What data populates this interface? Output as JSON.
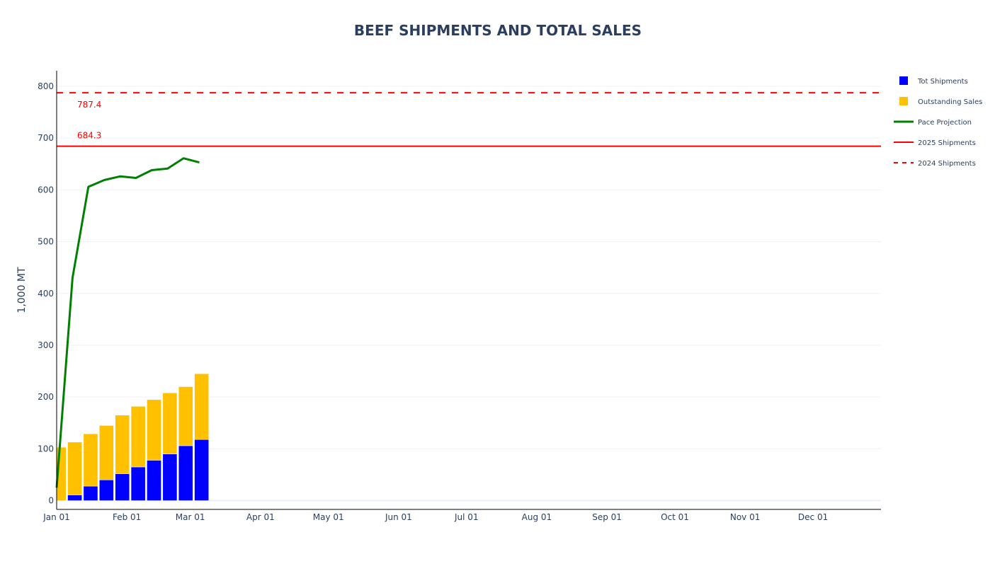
{
  "chart_data": {
    "type": "bar",
    "title": "BEEF SHIPMENTS AND TOTAL SALES",
    "ylabel": "1,000 MT",
    "xlabel": "",
    "ylim": [
      -17,
      830
    ],
    "xlim": [
      "2025-01-01",
      "2025-12-31"
    ],
    "grid": true,
    "barmode": "stack",
    "legend_position": "top-right",
    "y_ticks": [
      0,
      100,
      200,
      300,
      400,
      500,
      600,
      700,
      800
    ],
    "y_tick_labels": [
      "0",
      "100",
      "200",
      "300",
      "400",
      "500",
      "600",
      "700",
      "800"
    ],
    "x_ticks": [
      "2025-01-01",
      "2025-02-01",
      "2025-03-01",
      "2025-04-01",
      "2025-05-01",
      "2025-06-01",
      "2025-07-01",
      "2025-08-01",
      "2025-09-01",
      "2025-10-01",
      "2025-11-01",
      "2025-12-01"
    ],
    "x_tick_labels": [
      "Jan 01",
      "Feb 01",
      "Mar 01",
      "Apr 01",
      "May 01",
      "Jun 01",
      "Jul 01",
      "Aug 01",
      "Sep 01",
      "Oct 01",
      "Nov 01",
      "Dec 01"
    ],
    "x": [
      "2025-01-02",
      "2025-01-09",
      "2025-01-16",
      "2025-01-23",
      "2025-01-30",
      "2025-02-06",
      "2025-02-13",
      "2025-02-20",
      "2025-02-27",
      "2025-03-06"
    ],
    "series": [
      {
        "name": "Tot Shipments",
        "type": "bar",
        "color": "#0000ff",
        "values": [
          0,
          11,
          28,
          40,
          52,
          65,
          78,
          90,
          106,
          118
        ]
      },
      {
        "name": "Outstanding Sales",
        "type": "bar",
        "color": "#ffc000",
        "values": [
          103,
          102,
          101,
          105,
          113,
          117,
          117,
          118,
          114,
          127
        ]
      },
      {
        "name": "Pace Projection",
        "type": "line",
        "color": "#008000",
        "x": [
          "2025-01-01",
          "2025-01-08",
          "2025-01-15",
          "2025-01-22",
          "2025-01-29",
          "2025-02-05",
          "2025-02-12",
          "2025-02-19",
          "2025-02-26",
          "2025-03-05"
        ],
        "values": [
          25,
          430,
          606,
          619,
          626,
          623,
          638,
          641,
          661,
          653
        ]
      },
      {
        "name": "2025 Shipments",
        "type": "hline",
        "color": "#ff0000",
        "dash": "solid",
        "value": 684.3,
        "label": "684.3"
      },
      {
        "name": "2024 Shipments",
        "type": "hline",
        "color": "#ff0000",
        "dash": "dashed",
        "value": 787.4,
        "label": "787.4"
      }
    ]
  }
}
